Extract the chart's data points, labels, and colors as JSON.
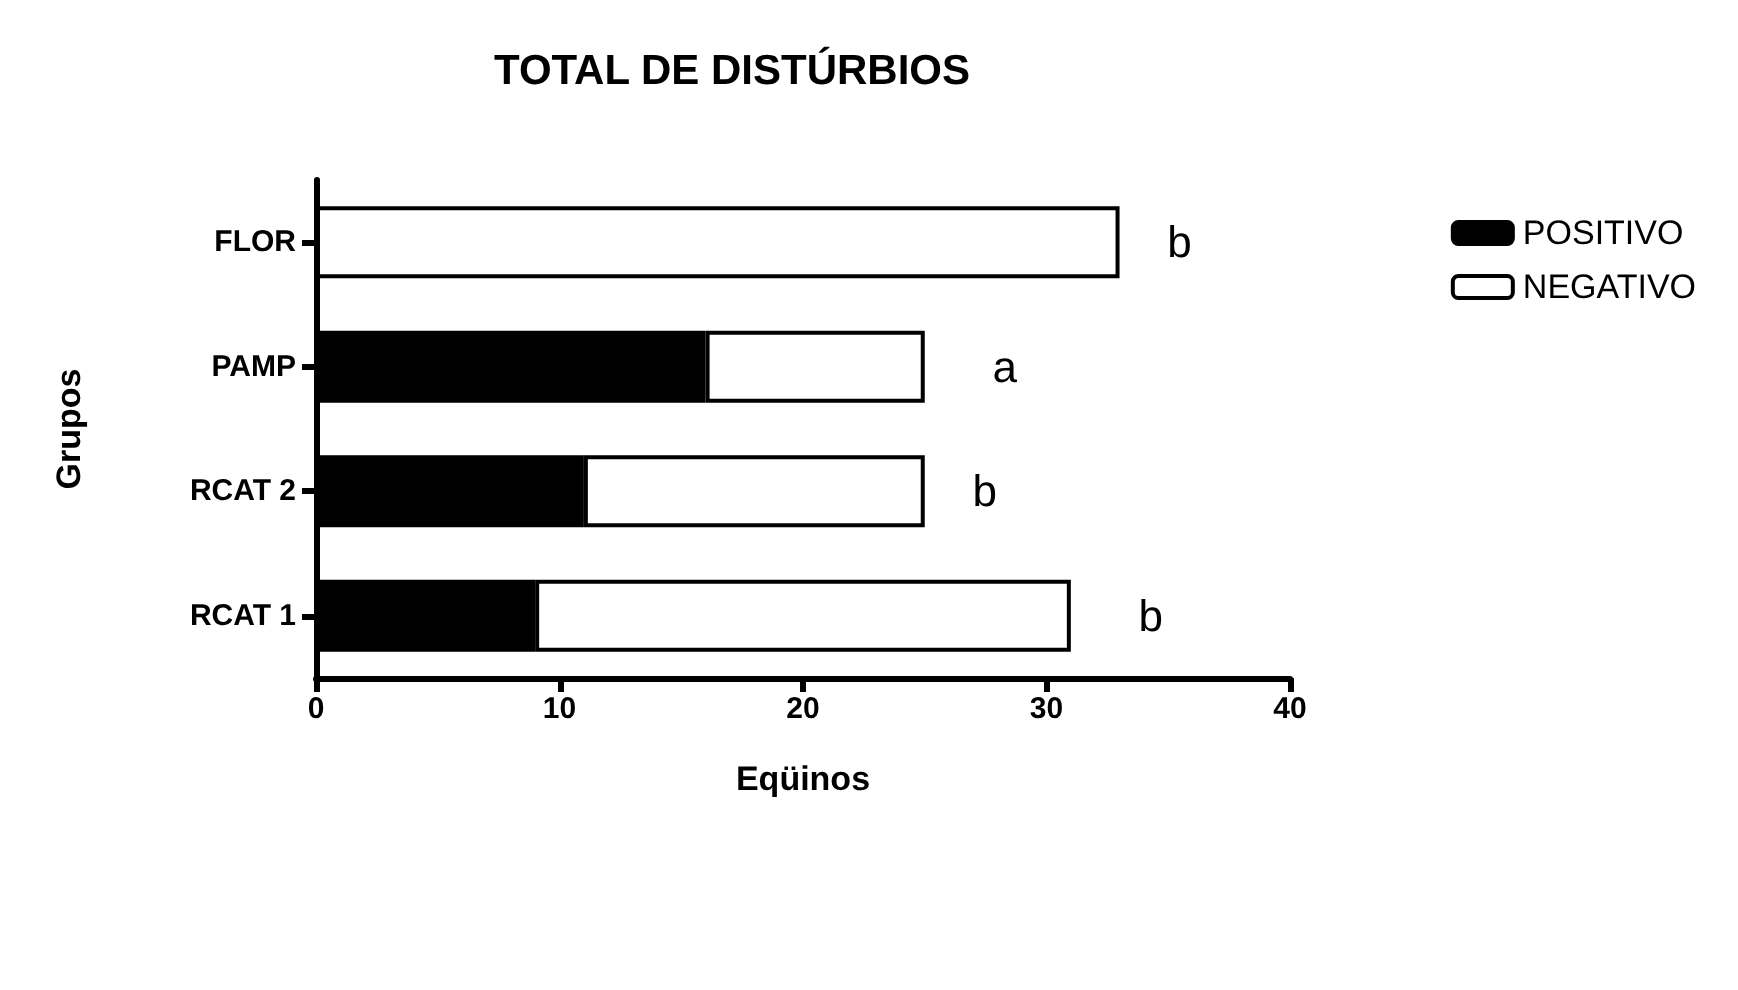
{
  "chart_data": {
    "type": "bar",
    "title": "TOTAL DE DISTÚRBIOS",
    "xlabel": "Eqüinos",
    "ylabel": "Grupos",
    "orientation": "horizontal",
    "stacked": true,
    "categories": [
      "FLOR",
      "PAMP",
      "RCAT 2",
      "RCAT 1"
    ],
    "series": [
      {
        "name": "POSITIVO",
        "color": "#000000",
        "values": [
          0,
          16,
          11,
          9
        ]
      },
      {
        "name": "NEGATIVO",
        "color": "#ffffff",
        "values": [
          33,
          9,
          14,
          22
        ]
      }
    ],
    "xlim": [
      0,
      40
    ],
    "xticks": [
      0,
      10,
      20,
      30,
      40
    ],
    "legend": "top right",
    "annotations": [
      "b",
      "a",
      "b",
      "b"
    ]
  }
}
